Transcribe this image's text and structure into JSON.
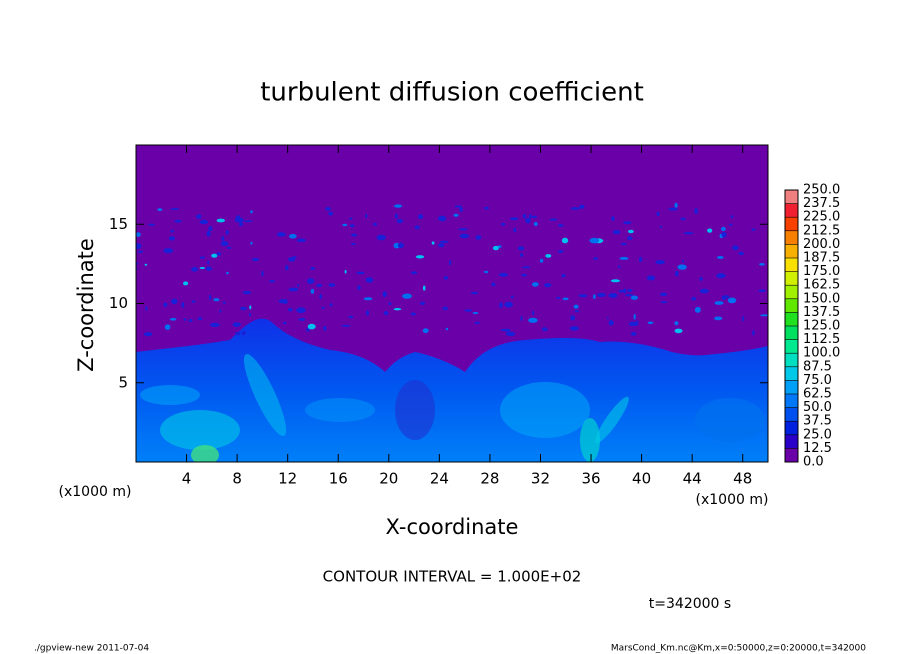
{
  "chart_data": {
    "type": "contour",
    "title": "turbulent diffusion coefficient",
    "x_label": "X-coordinate",
    "y_label": "Z-coordinate",
    "x_unit": "(x1000 m)",
    "y_unit": "(x1000 m)",
    "xlim": [
      0,
      50
    ],
    "ylim": [
      0,
      20
    ],
    "xticks": [
      4,
      8,
      12,
      16,
      20,
      24,
      28,
      32,
      36,
      40,
      44,
      48
    ],
    "yticks": [
      5,
      10,
      15
    ],
    "colorbar_ticks": [
      {
        "value": 0,
        "label": "0.0"
      },
      {
        "value": 12.5,
        "label": "12.5"
      },
      {
        "value": 25,
        "label": "25.0"
      },
      {
        "value": 37.5,
        "label": "37.5"
      },
      {
        "value": 50,
        "label": "50.0"
      },
      {
        "value": 62.5,
        "label": "62.5"
      },
      {
        "value": 75,
        "label": "75.0"
      },
      {
        "value": 87.5,
        "label": "87.5"
      },
      {
        "value": 100,
        "label": "100.0"
      },
      {
        "value": 112.5,
        "label": "112.5"
      },
      {
        "value": 125,
        "label": "125.0"
      },
      {
        "value": 137.5,
        "label": "137.5"
      },
      {
        "value": 150,
        "label": "150.0"
      },
      {
        "value": 162.5,
        "label": "162.5"
      },
      {
        "value": 175,
        "label": "175.0"
      },
      {
        "value": 187.5,
        "label": "187.5"
      },
      {
        "value": 200,
        "label": "200.0"
      },
      {
        "value": 212.5,
        "label": "212.5"
      },
      {
        "value": 225,
        "label": "225.0"
      },
      {
        "value": 237.5,
        "label": "237.5"
      },
      {
        "value": 250,
        "label": "250.0"
      }
    ],
    "colorbar_colors": [
      "#6a00a8",
      "#2a00c8",
      "#0020e0",
      "#0050f0",
      "#0078f8",
      "#00a0f8",
      "#00c8e8",
      "#00e0c0",
      "#00e890",
      "#00e060",
      "#20e020",
      "#60e800",
      "#a0f000",
      "#d0f000",
      "#f8e000",
      "#f8b000",
      "#f88000",
      "#f84000",
      "#f02030",
      "#f08080"
    ],
    "contour_interval": "CONTOUR INTERVAL = 1.000E+02",
    "time_label": "t=342000 s",
    "footer_left": "./gpview-new  2011-07-04",
    "footer_right": "MarsCond_Km.nc@Km,x=0:50000,z=0:20000,t=342000"
  }
}
